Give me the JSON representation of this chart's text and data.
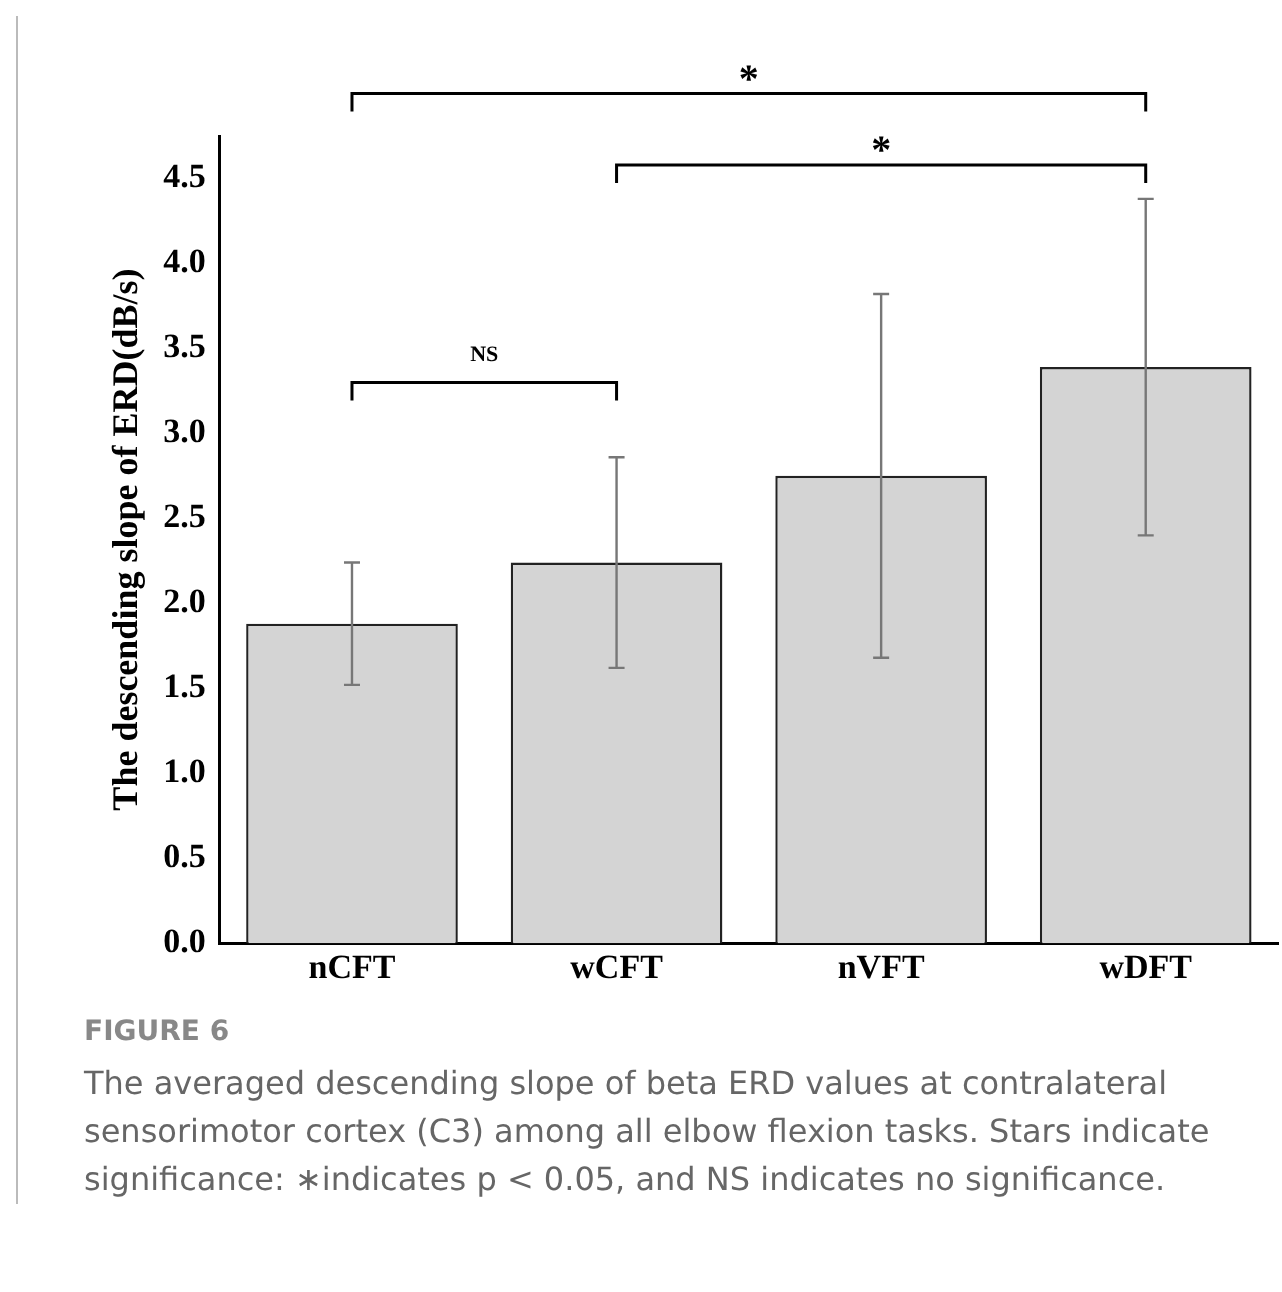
{
  "chart_data": {
    "type": "bar",
    "ylabel": "The descending slope of ERD(dB/s)",
    "categories": [
      "nCFT",
      "wCFT",
      "nVFT",
      "wDFT"
    ],
    "values": [
      1.88,
      2.24,
      2.75,
      3.39
    ],
    "errors": [
      0.36,
      0.62,
      1.07,
      0.99
    ],
    "color": "#d4d4d4",
    "ylim": [
      0,
      4.75
    ],
    "yticks": [
      {
        "value": 0,
        "label": "0.0"
      },
      {
        "value": 0.5,
        "label": "0.5"
      },
      {
        "value": 1,
        "label": "1.0"
      },
      {
        "value": 1.5,
        "label": "1.5"
      },
      {
        "value": 2,
        "label": "2.0"
      },
      {
        "value": 2.5,
        "label": "2.5"
      },
      {
        "value": 3,
        "label": "3.0"
      },
      {
        "value": 3.5,
        "label": "3.5"
      },
      {
        "value": 4,
        "label": "4.0"
      },
      {
        "value": 4.5,
        "label": "4.5"
      }
    ],
    "grid": false,
    "legend": false,
    "annotations": [
      "NS",
      "*",
      "*",
      "FIGURE 6",
      "The averaged descending slope of beta ERD values at contralateral sensorimotor cortex (C3) among all elbow flexion tasks. Stars indicate significance: ∗indicates p < 0.05, and NS indicates no significance."
    ]
  }
}
